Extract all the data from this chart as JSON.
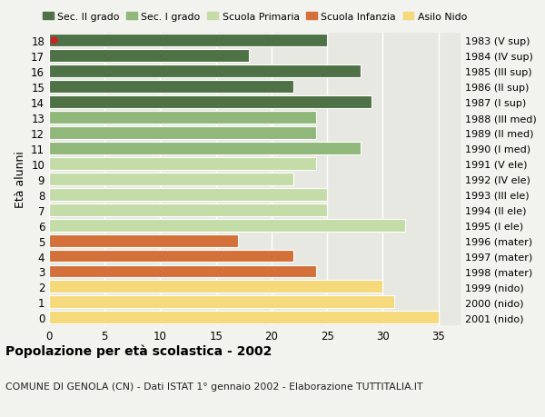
{
  "ages": [
    0,
    1,
    2,
    3,
    4,
    5,
    6,
    7,
    8,
    9,
    10,
    11,
    12,
    13,
    14,
    15,
    16,
    17,
    18
  ],
  "values": [
    35,
    31,
    30,
    24,
    22,
    17,
    32,
    25,
    25,
    22,
    24,
    28,
    24,
    24,
    29,
    22,
    28,
    18,
    25
  ],
  "right_labels": [
    "2001 (nido)",
    "2000 (nido)",
    "1999 (nido)",
    "1998 (mater)",
    "1997 (mater)",
    "1996 (mater)",
    "1995 (I ele)",
    "1994 (II ele)",
    "1993 (III ele)",
    "1992 (IV ele)",
    "1991 (V ele)",
    "1990 (I med)",
    "1989 (II med)",
    "1988 (III med)",
    "1987 (I sup)",
    "1986 (II sup)",
    "1985 (III sup)",
    "1984 (IV sup)",
    "1983 (V sup)"
  ],
  "bar_colors": [
    "#f5d97a",
    "#f5d97a",
    "#f5d97a",
    "#d4703a",
    "#d4703a",
    "#d4703a",
    "#c4dca8",
    "#c4dca8",
    "#c4dca8",
    "#c4dca8",
    "#c4dca8",
    "#8fb87a",
    "#8fb87a",
    "#8fb87a",
    "#4e7245",
    "#4e7245",
    "#4e7245",
    "#4e7245",
    "#4e7245"
  ],
  "legend_labels": [
    "Sec. II grado",
    "Sec. I grado",
    "Scuola Primaria",
    "Scuola Infanzia",
    "Asilo Nido"
  ],
  "legend_colors": [
    "#4e7245",
    "#8fb87a",
    "#c4dca8",
    "#d4703a",
    "#f5d97a"
  ],
  "ylabel_left": "Età alunni",
  "title": "Popolazione per età scolastica - 2002",
  "subtitle": "COMUNE DI GENOLA (CN) - Dati ISTAT 1° gennaio 2002 - Elaborazione TUTTITALIA.IT",
  "xlim": [
    0,
    37
  ],
  "xticks": [
    0,
    5,
    10,
    15,
    20,
    25,
    30,
    35
  ],
  "background_color": "#f2f2ee",
  "plot_bg_color": "#e8e8e2",
  "grid_color": "#ffffff",
  "dot_color": "#cc2222",
  "dot_age": 18
}
